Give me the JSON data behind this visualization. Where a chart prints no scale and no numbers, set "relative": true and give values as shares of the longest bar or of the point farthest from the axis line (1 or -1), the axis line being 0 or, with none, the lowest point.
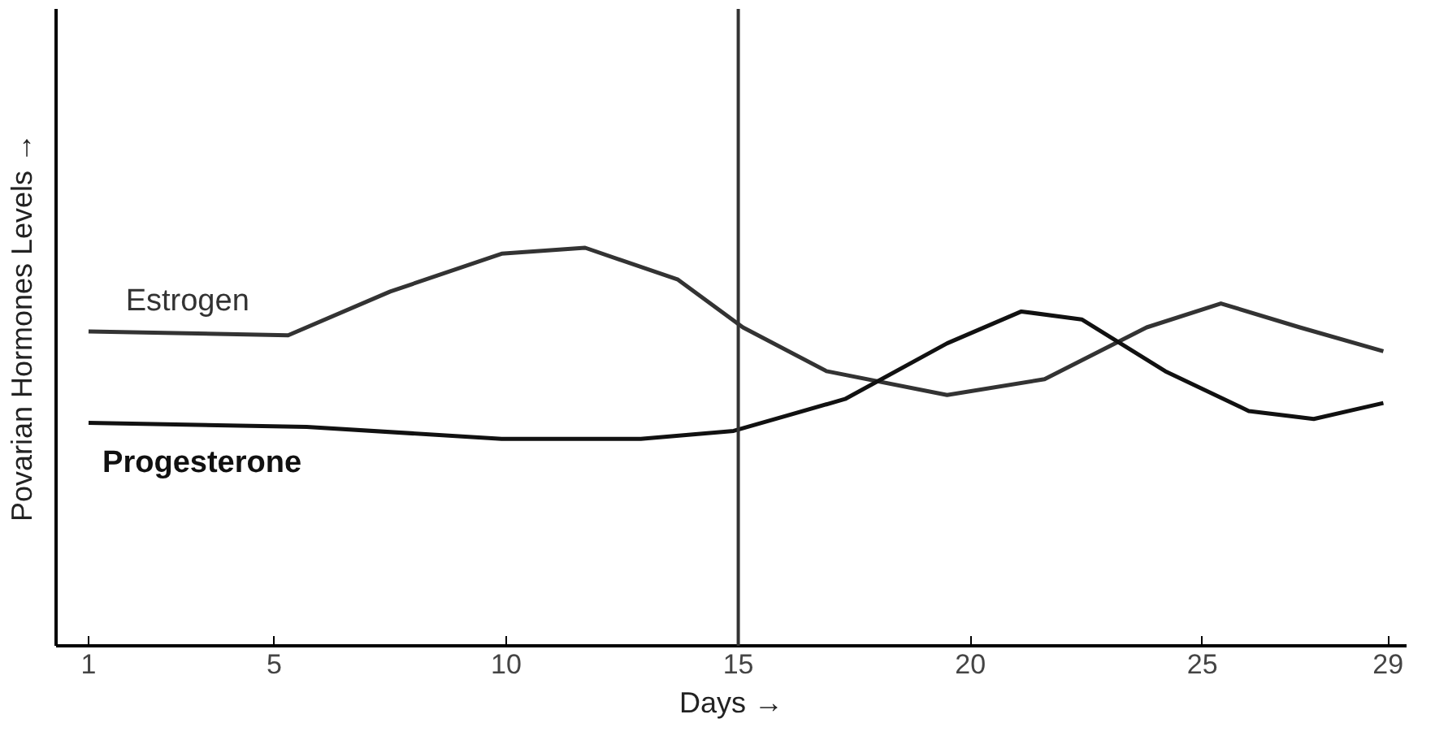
{
  "chart_data": {
    "type": "line",
    "relative": true,
    "xlabel": "Days →",
    "ylabel": "Povarian Hormones Levels →",
    "xlim": [
      0.3,
      29.4
    ],
    "xticks": [
      1,
      5,
      10,
      15,
      20,
      25,
      29
    ],
    "grid": false,
    "marker": "none",
    "line_style": "solid",
    "ref_lines": [
      {
        "axis": "x",
        "value": 15,
        "label": null,
        "color": "#333333"
      }
    ],
    "series": [
      {
        "name": "Estrogen",
        "color": "#333333",
        "x": [
          1,
          5.3,
          7.5,
          9.9,
          11.7,
          13.7,
          15.1,
          16.9,
          19.5,
          21.6,
          23.8,
          25.4,
          27.1,
          28.9
        ],
        "values": [
          0.79,
          0.78,
          0.89,
          0.985,
          1.0,
          0.92,
          0.8,
          0.69,
          0.63,
          0.67,
          0.8,
          0.86,
          0.8,
          0.74
        ]
      },
      {
        "name": "Progesterone",
        "color": "#111111",
        "x": [
          1,
          5.7,
          9.9,
          12.9,
          14.9,
          17.3,
          19.5,
          21.1,
          22.4,
          24.2,
          26.0,
          27.4,
          28.9
        ],
        "values": [
          0.56,
          0.55,
          0.52,
          0.52,
          0.54,
          0.62,
          0.76,
          0.84,
          0.82,
          0.69,
          0.59,
          0.57,
          0.61
        ]
      }
    ]
  }
}
